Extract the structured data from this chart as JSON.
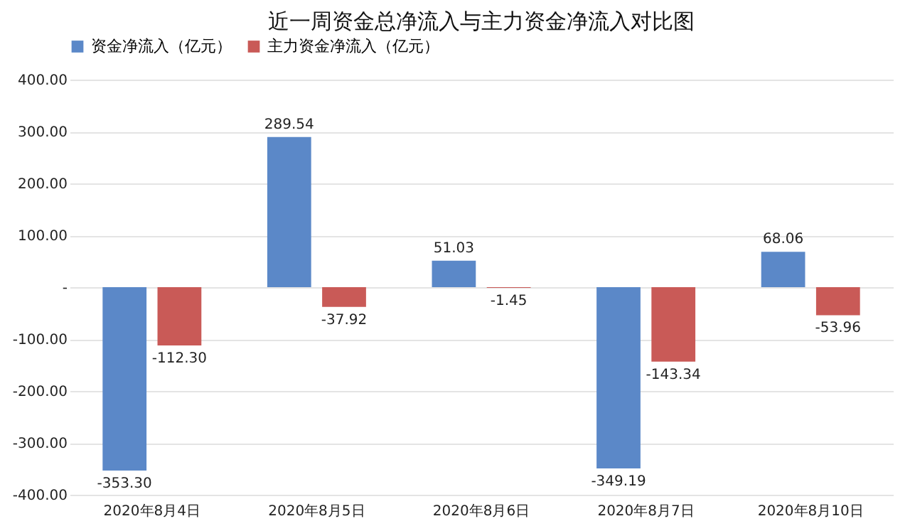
{
  "chart_data": {
    "type": "bar",
    "title": "近一周资金总净流入与主力资金净流入对比图",
    "categories": [
      "2020年8月4日",
      "2020年8月5日",
      "2020年8月6日",
      "2020年8月7日",
      "2020年8月10日"
    ],
    "series": [
      {
        "name": "资金净流入（亿元）",
        "color": "#5b88c8",
        "values": [
          -353.3,
          289.54,
          51.03,
          -349.19,
          68.06
        ],
        "value_labels": [
          "-353.30",
          "289.54",
          "51.03",
          "-349.19",
          "68.06"
        ]
      },
      {
        "name": "主力资金净流入（亿元）",
        "color": "#c95a57",
        "values": [
          -112.3,
          -37.92,
          -1.45,
          -143.34,
          -53.96
        ],
        "value_labels": [
          "-112.30",
          "-37.92",
          "-1.45",
          "-143.34",
          "-53.96"
        ]
      }
    ],
    "ylim": [
      -400,
      400
    ],
    "yticks": [
      {
        "value": -400,
        "label": "-400.00"
      },
      {
        "value": -300,
        "label": "-300.00"
      },
      {
        "value": -200,
        "label": "-200.00"
      },
      {
        "value": -100,
        "label": "-100.00"
      },
      {
        "value": 0,
        "label": "-"
      },
      {
        "value": 100,
        "label": "100.00"
      },
      {
        "value": 200,
        "label": "200.00"
      },
      {
        "value": 300,
        "label": "300.00"
      },
      {
        "value": 400,
        "label": "400.00"
      }
    ],
    "grid": "y",
    "legend": "top"
  }
}
